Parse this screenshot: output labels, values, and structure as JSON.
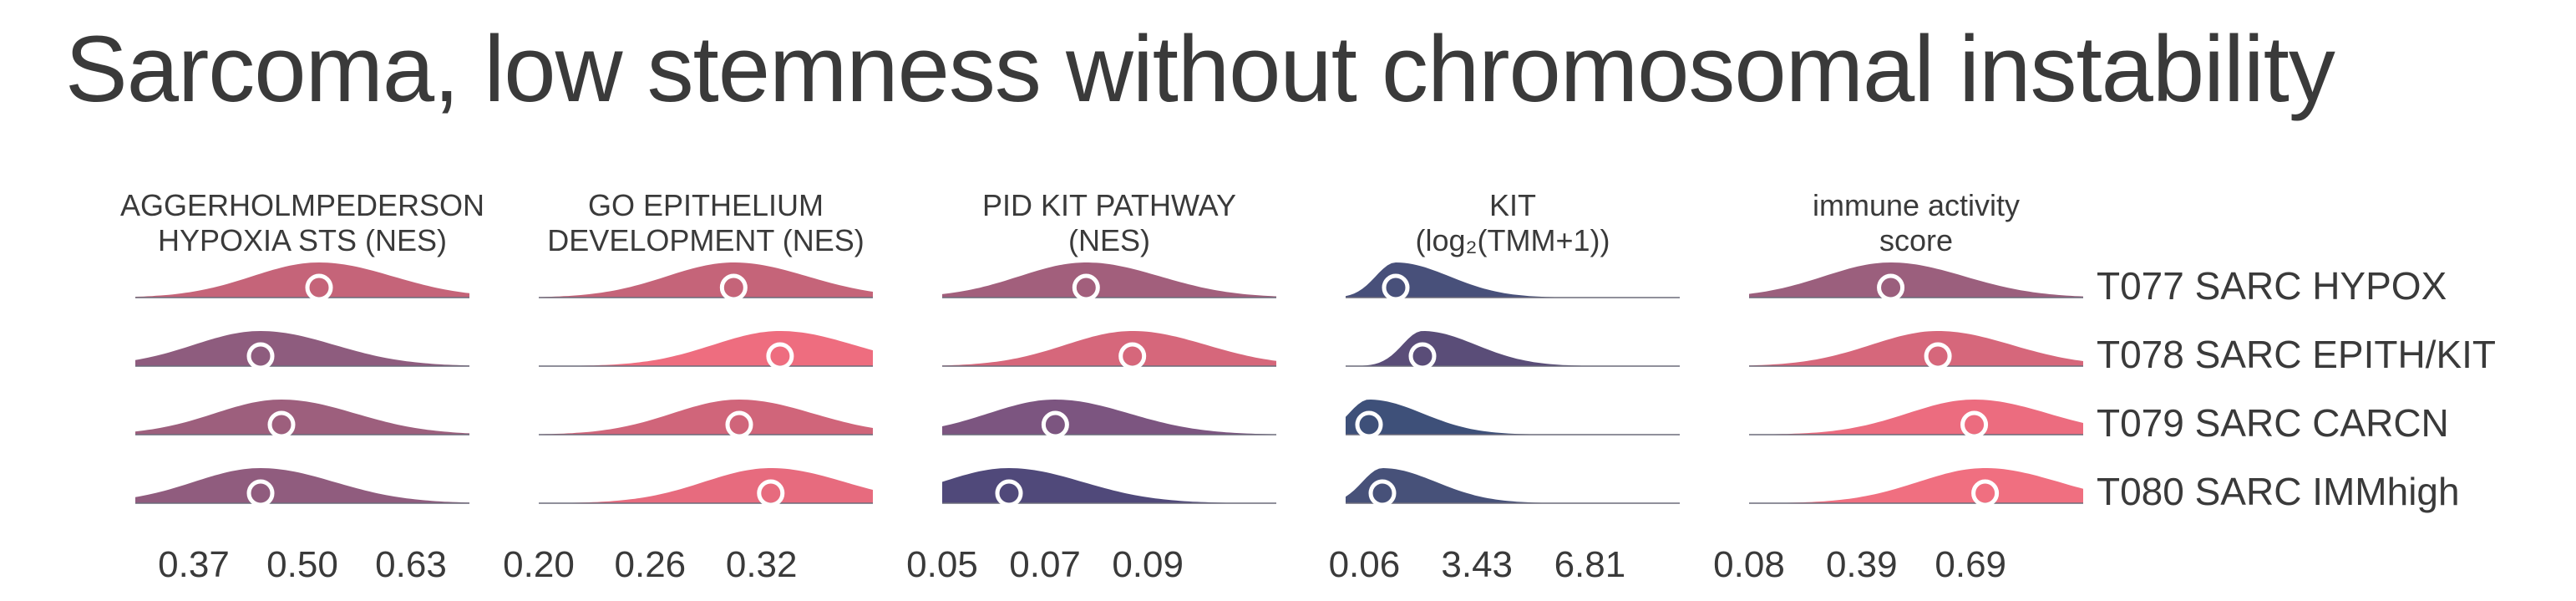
{
  "title": "Sarcoma, low stemness without chromosomal instability",
  "chart_data": {
    "type": "ridgeline",
    "rows": [
      "T077 SARC HYPOX",
      "T078 SARC EPITH/KIT",
      "T079 SARC CARCN",
      "T080 SARC IMMhigh"
    ],
    "panels": [
      {
        "title_lines": [
          "AGGERHOLMPEDERSON",
          "HYPOXIA STS (NES)"
        ],
        "ticks": [
          "0.37",
          "0.50",
          "0.63"
        ],
        "tick_values": [
          0.37,
          0.5,
          0.63
        ],
        "xlim": [
          0.3,
          0.7
        ],
        "medians": [
          0.52,
          0.45,
          0.475,
          0.45
        ],
        "colors": [
          "#c56479",
          "#8e5c7e",
          "#9d5f7d",
          "#905c7e"
        ]
      },
      {
        "title_lines": [
          "GO EPITHELIUM",
          "DEVELOPMENT (NES)"
        ],
        "ticks": [
          "0.20",
          "0.26",
          "0.32"
        ],
        "tick_values": [
          0.2,
          0.26,
          0.32
        ],
        "xlim": [
          0.2,
          0.38
        ],
        "medians": [
          0.305,
          0.33,
          0.308,
          0.325
        ],
        "colors": [
          "#c56479",
          "#ee6d7f",
          "#d0657a",
          "#e76b7e"
        ]
      },
      {
        "title_lines": [
          "PID KIT PATHWAY",
          "(NES)"
        ],
        "ticks": [
          "0.05",
          "0.07",
          "0.09"
        ],
        "tick_values": [
          0.05,
          0.07,
          0.09
        ],
        "xlim": [
          0.05,
          0.115
        ],
        "medians": [
          0.078,
          0.087,
          0.072,
          0.063
        ],
        "colors": [
          "#a25f7c",
          "#d6677b",
          "#7c5580",
          "#50497a"
        ]
      },
      {
        "title_lines": [
          "KIT",
          "(log₂(TMM+1))"
        ],
        "ticks": [
          "0.06",
          "3.43",
          "6.81"
        ],
        "tick_values": [
          0.06,
          3.43,
          6.81
        ],
        "xlim": [
          -0.5,
          9.5
        ],
        "medians": [
          1.0,
          1.8,
          0.2,
          0.6
        ],
        "colors": [
          "#48507a",
          "#5a4d78",
          "#3e5079",
          "#475179"
        ]
      },
      {
        "title_lines": [
          "immune activity",
          "score"
        ],
        "ticks": [
          "0.08",
          "0.39",
          "0.69"
        ],
        "tick_values": [
          0.08,
          0.39,
          0.69
        ],
        "xlim": [
          0.08,
          1.0
        ],
        "medians": [
          0.47,
          0.6,
          0.7,
          0.73
        ],
        "colors": [
          "#9b5f7d",
          "#d6677b",
          "#ec6c7f",
          "#f06f80"
        ]
      }
    ]
  }
}
